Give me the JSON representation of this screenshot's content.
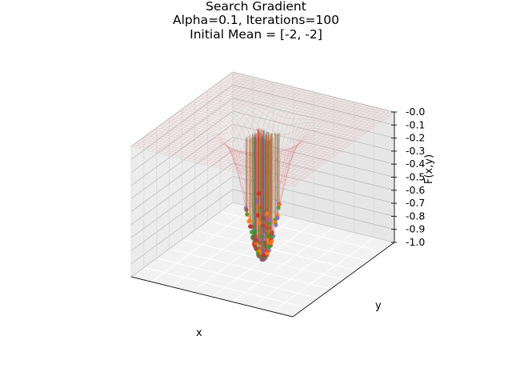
{
  "chart_data": {
    "type": "surface3d",
    "title_lines": [
      "Search Gradient",
      "Alpha=0.1, Iterations=100",
      "Initial Mean = [-2, -2]"
    ],
    "xlabel": "x",
    "ylabel": "y",
    "zlabel": "F(x,y)",
    "zlim": [
      -1.0,
      0.0
    ],
    "z_ticks": [
      -0.0,
      -0.1,
      -0.2,
      -0.3,
      -0.4,
      -0.5,
      -0.6,
      -0.7,
      -0.8,
      -0.9,
      -1.0
    ],
    "z_tick_labels": [
      "-0.0",
      "-0.1",
      "-0.2",
      "-0.3",
      "-0.4",
      "-0.5",
      "-0.6",
      "-0.7",
      "-0.8",
      "-0.9",
      "-1.0"
    ],
    "x_ticks_visible": false,
    "y_ticks_visible": false,
    "grid": true,
    "surface": {
      "function": "-exp(-(x^2 + y^2))",
      "style": "translucent-wireframe",
      "color": "#e06060"
    },
    "samples": {
      "colors": [
        "#d62728",
        "#2ca02c",
        "#9467bd",
        "#8c564b",
        "#ff7f0e"
      ],
      "min_value": -1.0,
      "note_visible": false
    }
  }
}
